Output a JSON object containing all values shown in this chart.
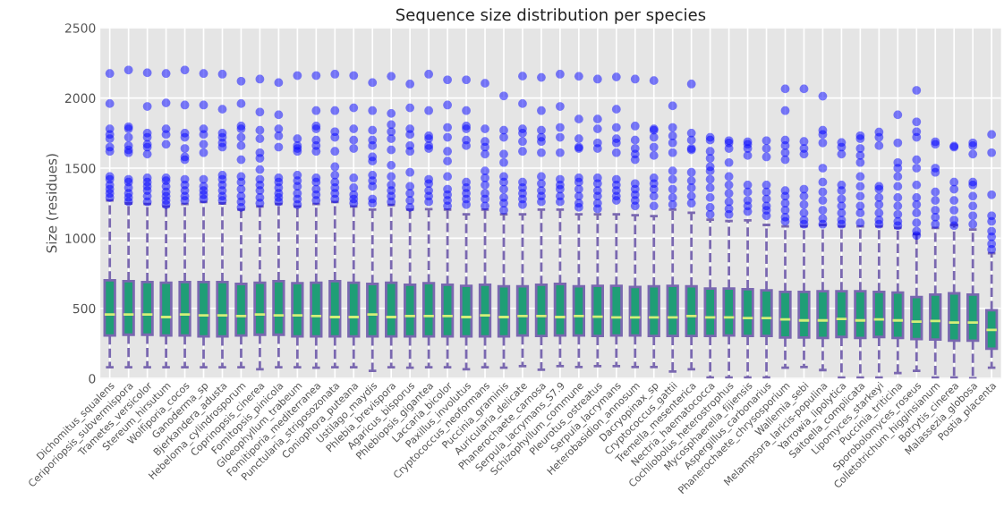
{
  "chart_data": {
    "type": "box",
    "title": "Sequence size distribution per species",
    "ylabel": "Size (residues)",
    "categories": [
      "Dichomitus_squalens",
      "Ceriporiopsis_subvermispora",
      "Trametes_versicolor",
      "Stereum_hirsutum",
      "Wolfiporia_cocos",
      "Ganoderma_sp",
      "Bjerkandera_adusta",
      "Hebeloma_cylindrosporum",
      "Coprinopsis_cinerea",
      "Fomitopsis_pinicola",
      "Gloeophyllum_trabeum",
      "Fomitiporia_mediterranea",
      "Punctularia_strigosozonata",
      "Coniophora_puteana",
      "Ustilago_maydis",
      "Phlebia_brevispora",
      "Agaricus_bisporus",
      "Phlebiopsis_gigantea",
      "Laccaria_bicolor",
      "Paxillus_involutus",
      "Cryptococcus_neoformans",
      "Puccinia_graminis",
      "Auricularia_delicate",
      "Phanerochaete_carnosa",
      "Serpula_lacrymans_S7.9",
      "Schizophyllum_commune",
      "Pleurotus_ostreatus",
      "Serpula_lacrymans",
      "Heterobasidion_annosum",
      "Dacryopinax_sp",
      "Cryptococcus_gattii",
      "Tremella_mesenterica",
      "Nectria_haematococca",
      "Cochliobolus_heterostrophus",
      "Mycosphaerella_fijiensis",
      "Aspergillus_carbonarius",
      "Phanerochaete_chrysosporium",
      "Wallemia_sebi",
      "Melampsora_laricis-populina",
      "Yarrowia_lipolytica",
      "Saitoella_complicata",
      "Lipomyces_starkeyi",
      "Puccinia_triticina",
      "Sporobolomyces_roseus",
      "Colletotrichum_higginsianum",
      "Botrytis_cinerea",
      "Malassezia_globosa",
      "Postia_placenta"
    ],
    "color": "#1f9e76",
    "marker": "circle",
    "grid": true,
    "ylim": [
      0,
      2500
    ],
    "yticks": [
      0,
      500,
      1000,
      1500,
      2000,
      2500
    ],
    "boxes": [
      {
        "low": 80,
        "q1": 307,
        "median": 456,
        "q3": 700,
        "high": 1270,
        "outliers": [
          2175,
          1960,
          1780,
          1740,
          1710,
          1650,
          1620,
          1440,
          1420,
          1380,
          1350,
          1320,
          1290
        ]
      },
      {
        "low": 80,
        "q1": 312,
        "median": 456,
        "q3": 694,
        "high": 1248,
        "outliers": [
          2200,
          1795,
          1780,
          1720,
          1660,
          1630,
          1610,
          1420,
          1400,
          1360,
          1320,
          1290,
          1260
        ]
      },
      {
        "low": 80,
        "q1": 312,
        "median": 456,
        "q3": 688,
        "high": 1244,
        "outliers": [
          2180,
          1940,
          1750,
          1720,
          1670,
          1650,
          1600,
          1430,
          1400,
          1370,
          1340,
          1300,
          1260
        ]
      },
      {
        "low": 80,
        "q1": 307,
        "median": 438,
        "q3": 683,
        "high": 1226,
        "outliers": [
          2175,
          1965,
          1780,
          1740,
          1670,
          1430,
          1410,
          1370,
          1330,
          1300,
          1270,
          1240
        ]
      },
      {
        "low": 80,
        "q1": 307,
        "median": 456,
        "q3": 688,
        "high": 1244,
        "outliers": [
          2200,
          1950,
          1750,
          1720,
          1640,
          1580,
          1560,
          1420,
          1380,
          1340,
          1300,
          1270
        ]
      },
      {
        "low": 80,
        "q1": 300,
        "median": 450,
        "q3": 688,
        "high": 1259,
        "outliers": [
          2175,
          1950,
          1780,
          1740,
          1670,
          1610,
          1420,
          1370,
          1340,
          1310,
          1280
        ]
      },
      {
        "low": 80,
        "q1": 300,
        "median": 450,
        "q3": 688,
        "high": 1248,
        "outliers": [
          2170,
          1920,
          1750,
          1720,
          1680,
          1650,
          1450,
          1420,
          1380,
          1340,
          1300,
          1270
        ]
      },
      {
        "low": 80,
        "q1": 307,
        "median": 445,
        "q3": 674,
        "high": 1204,
        "outliers": [
          2120,
          1960,
          1800,
          1780,
          1720,
          1660,
          1560,
          1440,
          1400,
          1350,
          1300,
          1260,
          1220
        ]
      },
      {
        "low": 66,
        "q1": 312,
        "median": 456,
        "q3": 683,
        "high": 1226,
        "outliers": [
          2135,
          1900,
          1770,
          1710,
          1610,
          1570,
          1490,
          1420,
          1380,
          1340,
          1290,
          1250
        ]
      },
      {
        "low": 80,
        "q1": 312,
        "median": 450,
        "q3": 694,
        "high": 1244,
        "outliers": [
          2110,
          1880,
          1780,
          1730,
          1650,
          1430,
          1400,
          1360,
          1320,
          1290,
          1260
        ]
      },
      {
        "low": 80,
        "q1": 300,
        "median": 450,
        "q3": 679,
        "high": 1226,
        "outliers": [
          2160,
          1710,
          1660,
          1640,
          1620,
          1450,
          1410,
          1370,
          1320,
          1280,
          1240
        ]
      },
      {
        "low": 77,
        "q1": 300,
        "median": 445,
        "q3": 683,
        "high": 1244,
        "outliers": [
          2160,
          1910,
          1800,
          1780,
          1700,
          1660,
          1620,
          1430,
          1400,
          1350,
          1310,
          1270
        ]
      },
      {
        "low": 80,
        "q1": 300,
        "median": 438,
        "q3": 694,
        "high": 1259,
        "outliers": [
          2170,
          1910,
          1760,
          1720,
          1620,
          1510,
          1450,
          1400,
          1360,
          1320,
          1280
        ]
      },
      {
        "low": 80,
        "q1": 300,
        "median": 438,
        "q3": 683,
        "high": 1226,
        "outliers": [
          2160,
          1930,
          1780,
          1700,
          1640,
          1430,
          1360,
          1310,
          1280,
          1250
        ]
      },
      {
        "low": 55,
        "q1": 300,
        "median": 456,
        "q3": 674,
        "high": 1204,
        "outliers": [
          2110,
          1910,
          1770,
          1700,
          1660,
          1580,
          1550,
          1450,
          1410,
          1370,
          1280,
          1250
        ]
      },
      {
        "low": 80,
        "q1": 300,
        "median": 438,
        "q3": 683,
        "high": 1237,
        "outliers": [
          2155,
          1890,
          1810,
          1760,
          1710,
          1630,
          1520,
          1440,
          1380,
          1340,
          1300,
          1260
        ]
      },
      {
        "low": 77,
        "q1": 300,
        "median": 445,
        "q3": 668,
        "high": 1204,
        "outliers": [
          2100,
          1930,
          1780,
          1740,
          1660,
          1620,
          1470,
          1370,
          1320,
          1270,
          1220
        ]
      },
      {
        "low": 80,
        "q1": 300,
        "median": 445,
        "q3": 679,
        "high": 1208,
        "outliers": [
          2170,
          1910,
          1730,
          1710,
          1660,
          1640,
          1420,
          1390,
          1340,
          1300,
          1260
        ]
      },
      {
        "low": 80,
        "q1": 300,
        "median": 445,
        "q3": 668,
        "high": 1204,
        "outliers": [
          2130,
          1950,
          1790,
          1720,
          1620,
          1550,
          1440,
          1350,
          1310,
          1270,
          1230
        ]
      },
      {
        "low": 66,
        "q1": 300,
        "median": 438,
        "q3": 661,
        "high": 1171,
        "outliers": [
          2130,
          1910,
          1800,
          1780,
          1700,
          1660,
          1400,
          1360,
          1320,
          1280,
          1240
        ]
      },
      {
        "low": 80,
        "q1": 300,
        "median": 450,
        "q3": 668,
        "high": 1204,
        "outliers": [
          2105,
          1780,
          1690,
          1650,
          1600,
          1480,
          1430,
          1380,
          1320,
          1280,
          1230
        ]
      },
      {
        "low": 77,
        "q1": 300,
        "median": 438,
        "q3": 657,
        "high": 1171,
        "outliers": [
          2015,
          1770,
          1720,
          1600,
          1540,
          1440,
          1400,
          1350,
          1290,
          1250,
          1200
        ]
      },
      {
        "low": 88,
        "q1": 307,
        "median": 445,
        "q3": 657,
        "high": 1171,
        "outliers": [
          2156,
          1960,
          1780,
          1750,
          1690,
          1620,
          1400,
          1360,
          1320,
          1280,
          1240
        ]
      },
      {
        "low": 62,
        "q1": 303,
        "median": 445,
        "q3": 668,
        "high": 1204,
        "outliers": [
          2147,
          1910,
          1770,
          1720,
          1690,
          1610,
          1440,
          1390,
          1340,
          1300,
          1260
        ]
      },
      {
        "low": 88,
        "q1": 307,
        "median": 438,
        "q3": 674,
        "high": 1204,
        "outliers": [
          2170,
          1940,
          1790,
          1720,
          1610,
          1420,
          1380,
          1350,
          1300,
          1260
        ]
      },
      {
        "low": 82,
        "q1": 307,
        "median": 445,
        "q3": 657,
        "high": 1171,
        "outliers": [
          2155,
          1850,
          1710,
          1650,
          1640,
          1430,
          1400,
          1350,
          1300,
          1250,
          1220
        ]
      },
      {
        "low": 88,
        "q1": 303,
        "median": 440,
        "q3": 661,
        "high": 1171,
        "outliers": [
          2135,
          1850,
          1780,
          1680,
          1640,
          1430,
          1390,
          1340,
          1300,
          1250,
          1210
        ]
      },
      {
        "low": 88,
        "q1": 307,
        "median": 436,
        "q3": 661,
        "high": 1171,
        "outliers": [
          2150,
          1920,
          1790,
          1710,
          1680,
          1610,
          1420,
          1380,
          1340,
          1300,
          1270
        ]
      },
      {
        "low": 82,
        "q1": 307,
        "median": 436,
        "q3": 653,
        "high": 1165,
        "outliers": [
          2135,
          1800,
          1700,
          1640,
          1600,
          1560,
          1390,
          1350,
          1310,
          1270,
          1230
        ]
      },
      {
        "low": 82,
        "q1": 303,
        "median": 436,
        "q3": 657,
        "high": 1158,
        "outliers": [
          2124,
          1780,
          1770,
          1720,
          1650,
          1590,
          1430,
          1390,
          1350,
          1300,
          1230
        ]
      },
      {
        "low": 49,
        "q1": 303,
        "median": 436,
        "q3": 661,
        "high": 1204,
        "outliers": [
          1944,
          1790,
          1730,
          1680,
          1610,
          1480,
          1420,
          1350,
          1290,
          1240
        ]
      },
      {
        "low": 66,
        "q1": 303,
        "median": 445,
        "q3": 657,
        "high": 1182,
        "outliers": [
          2100,
          1750,
          1700,
          1640,
          1630,
          1470,
          1410,
          1360,
          1300,
          1250
        ]
      },
      {
        "low": 7,
        "q1": 303,
        "median": 436,
        "q3": 641,
        "high": 1132,
        "outliers": [
          1719,
          1700,
          1620,
          1570,
          1510,
          1480,
          1420,
          1360,
          1290,
          1220,
          1170
        ]
      },
      {
        "low": 7,
        "q1": 307,
        "median": 436,
        "q3": 641,
        "high": 1123,
        "outliers": [
          1696,
          1680,
          1640,
          1540,
          1440,
          1380,
          1320,
          1260,
          1210,
          1170
        ]
      },
      {
        "low": 7,
        "q1": 303,
        "median": 431,
        "q3": 637,
        "high": 1128,
        "outliers": [
          1688,
          1670,
          1640,
          1590,
          1380,
          1330,
          1270,
          1230,
          1190
        ]
      },
      {
        "low": 7,
        "q1": 303,
        "median": 431,
        "q3": 629,
        "high": 1095,
        "outliers": [
          1696,
          1640,
          1580,
          1380,
          1330,
          1280,
          1230,
          1200,
          1160
        ]
      },
      {
        "low": 77,
        "q1": 292,
        "median": 421,
        "q3": 617,
        "high": 1084,
        "outliers": [
          2065,
          1910,
          1700,
          1660,
          1610,
          1560,
          1340,
          1300,
          1250,
          1200,
          1150,
          1120
        ]
      },
      {
        "low": 82,
        "q1": 292,
        "median": 414,
        "q3": 617,
        "high": 1084,
        "outliers": [
          2065,
          1690,
          1640,
          1600,
          1350,
          1300,
          1240,
          1180,
          1130,
          1100
        ]
      },
      {
        "low": 60,
        "q1": 289,
        "median": 414,
        "q3": 622,
        "high": 1095,
        "outliers": [
          2013,
          1770,
          1740,
          1680,
          1500,
          1400,
          1330,
          1270,
          1200,
          1140,
          1100
        ]
      },
      {
        "low": 7,
        "q1": 296,
        "median": 425,
        "q3": 622,
        "high": 1084,
        "outliers": [
          1683,
          1650,
          1600,
          1380,
          1340,
          1280,
          1230,
          1180,
          1130,
          1100
        ]
      },
      {
        "low": 7,
        "q1": 289,
        "median": 414,
        "q3": 622,
        "high": 1084,
        "outliers": [
          1731,
          1710,
          1640,
          1590,
          1540,
          1440,
          1370,
          1300,
          1230,
          1180,
          1110
        ]
      },
      {
        "low": 7,
        "q1": 296,
        "median": 421,
        "q3": 617,
        "high": 1084,
        "outliers": [
          1757,
          1720,
          1660,
          1370,
          1350,
          1290,
          1240,
          1180,
          1130,
          1100
        ]
      },
      {
        "low": 38,
        "q1": 289,
        "median": 414,
        "q3": 613,
        "high": 1073,
        "outliers": [
          1880,
          1680,
          1540,
          1500,
          1440,
          1370,
          1290,
          1230,
          1170,
          1120,
          1090
        ]
      },
      {
        "low": 55,
        "q1": 281,
        "median": 405,
        "q3": 581,
        "high": 1029,
        "outliers": [
          2055,
          1830,
          1760,
          1720,
          1560,
          1500,
          1380,
          1290,
          1240,
          1180,
          1110,
          1050,
          1020
        ]
      },
      {
        "low": 7,
        "q1": 278,
        "median": 410,
        "q3": 598,
        "high": 1073,
        "outliers": [
          1688,
          1670,
          1500,
          1470,
          1330,
          1270,
          1200,
          1150,
          1100
        ]
      },
      {
        "low": 7,
        "q1": 270,
        "median": 399,
        "q3": 607,
        "high": 1095,
        "outliers": [
          1657,
          1650,
          1400,
          1350,
          1270,
          1200,
          1130,
          1090
        ]
      },
      {
        "low": 1,
        "q1": 270,
        "median": 399,
        "q3": 598,
        "high": 1062,
        "outliers": [
          1680,
          1660,
          1600,
          1400,
          1380,
          1300,
          1230,
          1160,
          1100
        ]
      },
      {
        "low": 77,
        "q1": 213,
        "median": 346,
        "q3": 487,
        "high": 893,
        "outliers": [
          1740,
          1610,
          1310,
          1160,
          1120,
          1050,
          1010,
          960,
          920
        ]
      }
    ]
  }
}
